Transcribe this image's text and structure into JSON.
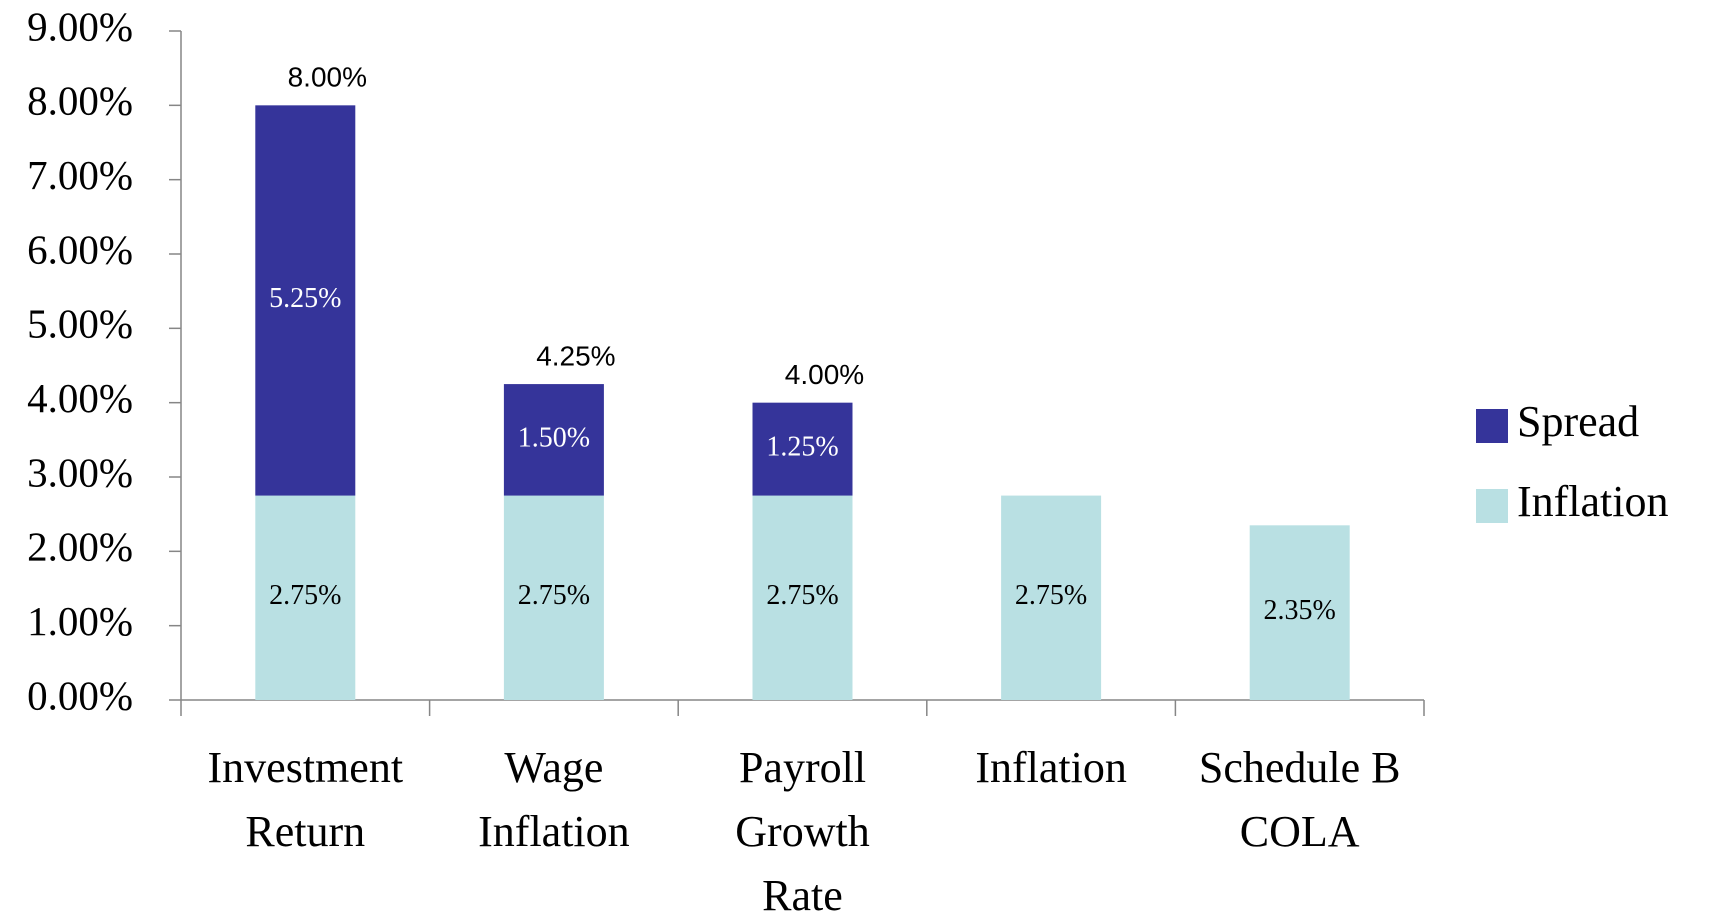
{
  "chart_data": {
    "type": "bar",
    "stacked": true,
    "categories": [
      [
        "Investment",
        "Return"
      ],
      [
        "Wage",
        "Inflation"
      ],
      [
        "Payroll",
        "Growth",
        "Rate"
      ],
      [
        "Inflation"
      ],
      [
        "Schedule B",
        "COLA"
      ]
    ],
    "series": [
      {
        "name": "Inflation",
        "color": "#b9e0e3",
        "values": [
          2.75,
          2.75,
          2.75,
          2.75,
          2.35
        ],
        "value_labels": [
          "2.75%",
          "2.75%",
          "2.75%",
          "2.75%",
          "2.35%"
        ],
        "label_color": "#000000"
      },
      {
        "name": "Spread",
        "color": "#35349a",
        "values": [
          5.25,
          1.5,
          1.25,
          null,
          null
        ],
        "value_labels": [
          "5.25%",
          "1.50%",
          "1.25%",
          null,
          null
        ],
        "label_color": "#ffffff"
      }
    ],
    "totals": [
      8,
      4.25,
      4,
      null,
      null
    ],
    "total_labels": [
      "8.00%",
      "4.25%",
      "4.00%",
      null,
      null
    ],
    "ylim": [
      0,
      9
    ],
    "yticks": [
      {
        "value": 0,
        "label": "0.00%"
      },
      {
        "value": 1,
        "label": "1.00%"
      },
      {
        "value": 2,
        "label": "2.00%"
      },
      {
        "value": 3,
        "label": "3.00%"
      },
      {
        "value": 4,
        "label": "4.00%"
      },
      {
        "value": 5,
        "label": "5.00%"
      },
      {
        "value": 6,
        "label": "6.00%"
      },
      {
        "value": 7,
        "label": "7.00%"
      },
      {
        "value": 8,
        "label": "8.00%"
      },
      {
        "value": 9,
        "label": "9.00%"
      }
    ],
    "legend": "right"
  }
}
